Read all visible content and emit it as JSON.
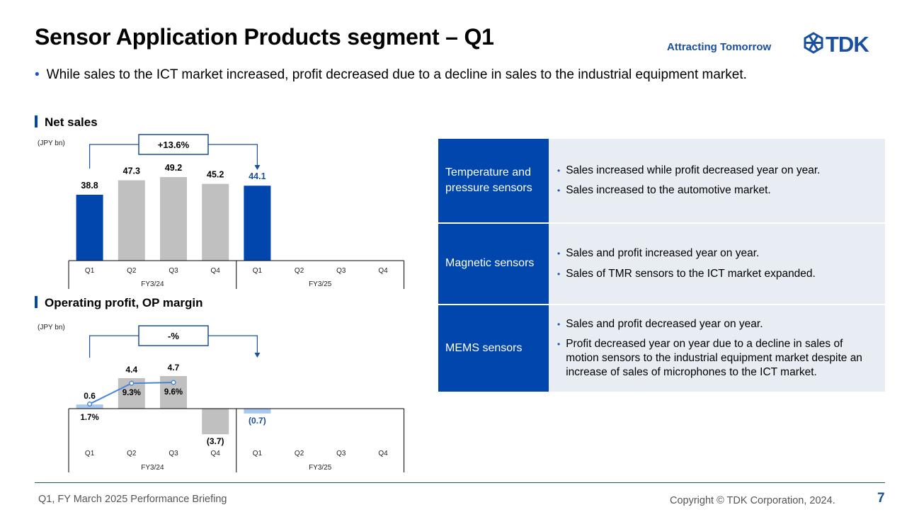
{
  "header": {
    "title": "Sensor Application Products segment – Q1",
    "tagline": "Attracting Tomorrow",
    "logo_text": "TDK"
  },
  "summary": "While sales to the ICT market increased, profit decreased due to a decline in sales to the industrial equipment market.",
  "colors": {
    "accent": "#0046ad",
    "gray_bar": "#c0c0c0",
    "light_blue": "#a8c8f0",
    "line": "#4a86d8",
    "panel": "#e8edf4"
  },
  "chart_data": [
    {
      "type": "bar",
      "title": "Net sales",
      "unit": "(JPY bn)",
      "categories": [
        "Q1",
        "Q2",
        "Q3",
        "Q4",
        "Q1",
        "Q2",
        "Q3",
        "Q4"
      ],
      "groups": [
        "FY3/24",
        "FY3/25"
      ],
      "values": [
        38.8,
        47.3,
        49.2,
        45.2,
        44.1,
        null,
        null,
        null
      ],
      "labels": [
        "38.8",
        "47.3",
        "49.2",
        "45.2",
        "44.1"
      ],
      "highlight": [
        true,
        false,
        false,
        false,
        true
      ],
      "change": "+13.6%",
      "ylim": [
        0,
        49.2
      ]
    },
    {
      "type": "bar",
      "title": "Operating profit, OP margin",
      "unit": "(JPY bn)",
      "categories": [
        "Q1",
        "Q2",
        "Q3",
        "Q4",
        "Q1",
        "Q2",
        "Q3",
        "Q4"
      ],
      "groups": [
        "FY3/24",
        "FY3/25"
      ],
      "values": [
        0.6,
        4.4,
        4.7,
        -3.7,
        -0.7,
        null,
        null,
        null
      ],
      "labels": [
        "0.6",
        "4.4",
        "4.7",
        "(3.7)",
        "(0.7)"
      ],
      "margin": [
        1.7,
        9.3,
        9.6
      ],
      "margin_labels": [
        "1.7%",
        "9.3%",
        "9.6%"
      ],
      "change": "-%",
      "ylim": [
        -3.7,
        4.7
      ]
    }
  ],
  "segments": [
    {
      "name": "Temperature and pressure sensors",
      "points": [
        "Sales increased while profit decreased year on year.",
        "Sales increased to the automotive market."
      ]
    },
    {
      "name": "Magnetic sensors",
      "points": [
        "Sales and profit increased year on year.",
        "Sales of TMR sensors to the ICT market expanded."
      ]
    },
    {
      "name": "MEMS sensors",
      "points": [
        "Sales and profit decreased year on year.",
        "Profit decreased year on year due to a decline in sales of motion sensors to the industrial equipment market despite an increase of sales of microphones to the ICT market."
      ]
    }
  ],
  "footer": {
    "left": "Q1, FY March 2025 Performance Briefing",
    "right": "Copyright © TDK Corporation, 2024.",
    "page": "7"
  }
}
